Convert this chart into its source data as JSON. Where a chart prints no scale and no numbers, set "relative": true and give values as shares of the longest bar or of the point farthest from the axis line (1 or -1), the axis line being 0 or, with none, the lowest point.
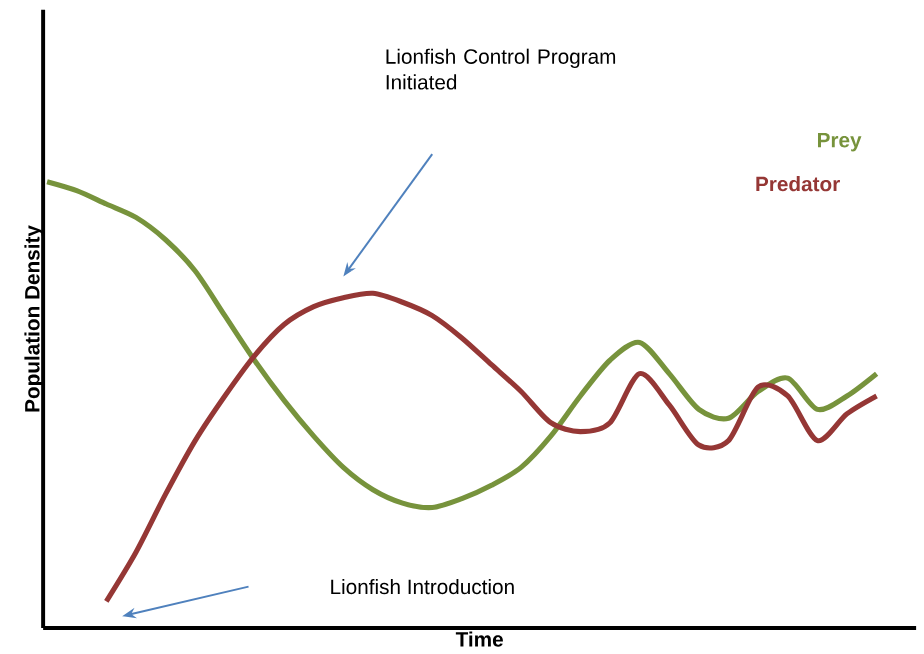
{
  "chart_data": {
    "type": "line",
    "relative": true,
    "xlabel": "Time",
    "ylabel": "Population Density",
    "categories": [
      null,
      null,
      null,
      null,
      null,
      null,
      null,
      null,
      null,
      null,
      null,
      null,
      null,
      null,
      null,
      null,
      null,
      null,
      null,
      null,
      null,
      null,
      null,
      null,
      null,
      null,
      null,
      null,
      null
    ],
    "series": [
      {
        "name": "Prey",
        "color": "#77933c",
        "values": [
          1.0,
          0.98,
          0.95,
          0.92,
          0.87,
          0.8,
          0.7,
          0.6,
          0.51,
          0.43,
          0.36,
          0.31,
          0.28,
          0.27,
          0.29,
          0.32,
          0.36,
          0.43,
          0.52,
          0.6,
          0.64,
          0.57,
          0.49,
          0.47,
          0.53,
          0.56,
          0.49,
          0.52,
          0.57
        ]
      },
      {
        "name": "Predator",
        "color": "#953735",
        "values": [
          null,
          null,
          0.06,
          0.17,
          0.3,
          0.42,
          0.52,
          0.61,
          0.68,
          0.72,
          0.74,
          0.75,
          0.73,
          0.7,
          0.65,
          0.59,
          0.53,
          0.46,
          0.44,
          0.46,
          0.57,
          0.5,
          0.41,
          0.42,
          0.54,
          0.52,
          0.42,
          0.48,
          0.52
        ]
      }
    ],
    "annotations": [
      "Lionfish Control Program Initiated",
      "Lionfish Introduction"
    ],
    "legend": "top right",
    "marker": "none",
    "line_style": "solid"
  }
}
